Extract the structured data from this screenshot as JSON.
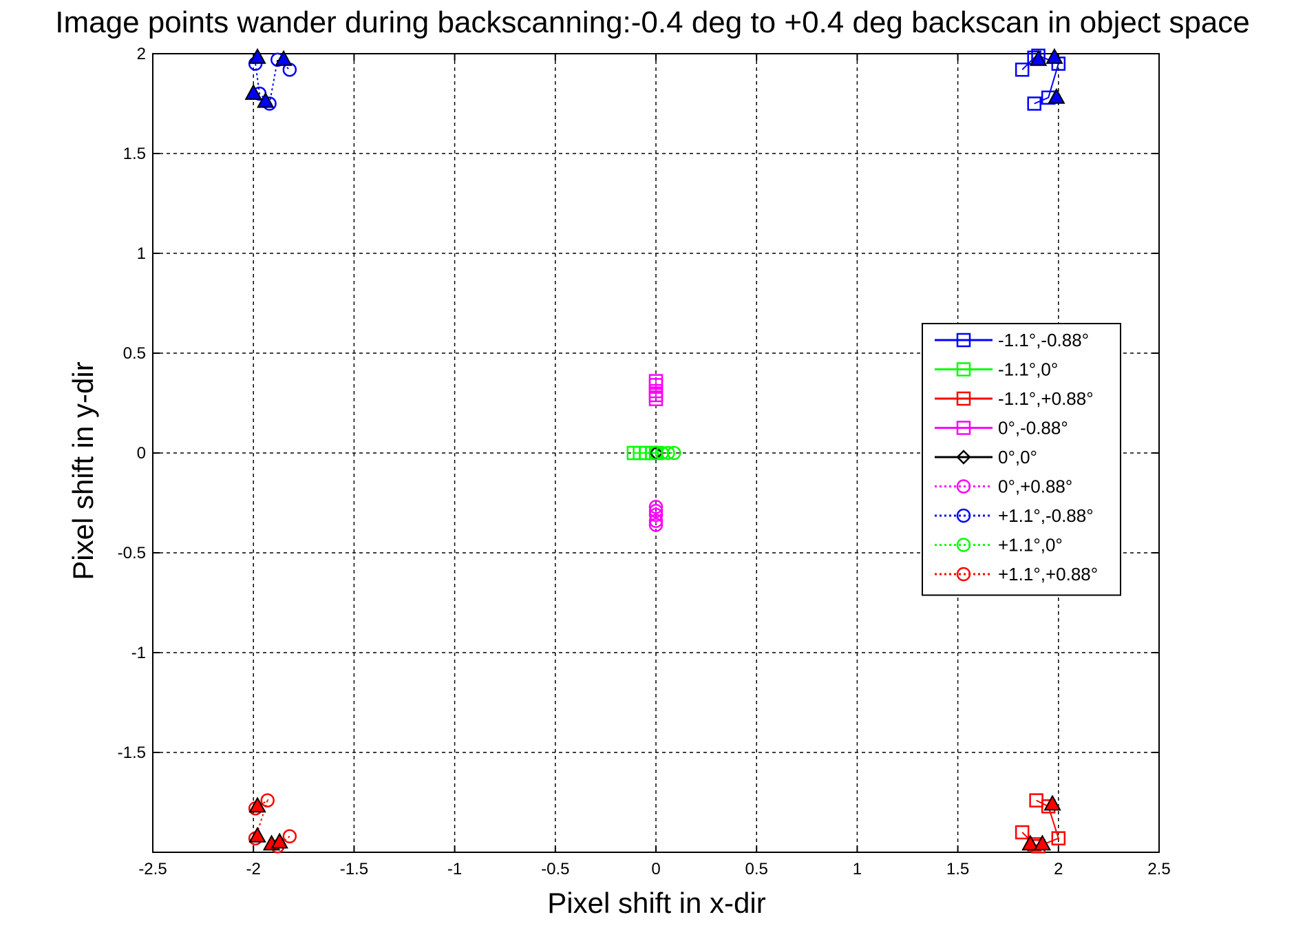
{
  "chart_data": {
    "type": "scatter",
    "title": "Image points wander during backscanning:-0.4 deg to +0.4 deg backscan in object space",
    "xlabel": "Pixel shift in x-dir",
    "ylabel": "Pixel shift in y-dir",
    "xlim": [
      -2.5,
      2.5
    ],
    "ylim": [
      -2.0,
      2.0
    ],
    "xticks": [
      -2.5,
      -2,
      -1.5,
      -1,
      -0.5,
      0,
      0.5,
      1,
      1.5,
      2,
      2.5
    ],
    "xtick_labels": [
      "-2.5",
      "-2",
      "-1.5",
      "-1",
      "-0.5",
      "0",
      "0.5",
      "1",
      "1.5",
      "2",
      "2.5"
    ],
    "yticks": [
      -1.5,
      -1,
      -0.5,
      0,
      0.5,
      1,
      1.5,
      2
    ],
    "ytick_labels": [
      "-1.5",
      "-1",
      "-0.5",
      "0",
      "0.5",
      "1",
      "1.5",
      "2"
    ],
    "grid": true,
    "legend_position": "right",
    "series": [
      {
        "name": "-1.1°,-0.88°",
        "color": "#0000ff",
        "line": "solid",
        "marker": "square",
        "points": [
          [
            1.82,
            1.92
          ],
          [
            1.88,
            1.98
          ],
          [
            1.9,
            1.99
          ],
          [
            2.0,
            1.95
          ],
          [
            1.95,
            1.78
          ],
          [
            1.88,
            1.75
          ]
        ]
      },
      {
        "name": "-1.1°,0°",
        "color": "#00ff00",
        "line": "solid",
        "marker": "square",
        "points": [
          [
            -0.11,
            0.0
          ],
          [
            -0.08,
            0.0
          ],
          [
            -0.05,
            0.0
          ],
          [
            -0.02,
            0.0
          ],
          [
            0.0,
            0.0
          ]
        ]
      },
      {
        "name": "-1.1°,+0.88°",
        "color": "#ff0000",
        "line": "solid",
        "marker": "square",
        "points": [
          [
            1.82,
            -1.9
          ],
          [
            1.88,
            -1.96
          ],
          [
            1.9,
            -1.97
          ],
          [
            2.0,
            -1.93
          ],
          [
            1.95,
            -1.77
          ],
          [
            1.89,
            -1.74
          ]
        ]
      },
      {
        "name": "0°,-0.88°",
        "color": "#ff00ff",
        "line": "solid",
        "marker": "square",
        "points": [
          [
            0.0,
            0.36
          ],
          [
            0.0,
            0.34
          ],
          [
            0.0,
            0.31
          ],
          [
            0.0,
            0.29
          ],
          [
            0.0,
            0.27
          ]
        ]
      },
      {
        "name": "0°,0°",
        "color": "#000000",
        "line": "solid",
        "marker": "diamond",
        "points": [
          [
            0.0,
            0.0
          ]
        ]
      },
      {
        "name": "0°,+0.88°",
        "color": "#ff00ff",
        "line": "dotted",
        "marker": "circle",
        "points": [
          [
            0.0,
            -0.27
          ],
          [
            0.0,
            -0.29
          ],
          [
            0.0,
            -0.31
          ],
          [
            0.0,
            -0.34
          ],
          [
            0.0,
            -0.36
          ]
        ]
      },
      {
        "name": "+1.1°,-0.88°",
        "color": "#0000ff",
        "line": "dotted",
        "marker": "circle",
        "points": [
          [
            -1.99,
            1.95
          ],
          [
            -1.97,
            1.8
          ],
          [
            -1.92,
            1.75
          ],
          [
            -1.88,
            1.97
          ],
          [
            -1.82,
            1.92
          ]
        ]
      },
      {
        "name": "+1.1°,0°",
        "color": "#00ff00",
        "line": "dotted",
        "marker": "circle",
        "points": [
          [
            0.0,
            0.0
          ],
          [
            0.03,
            0.0
          ],
          [
            0.06,
            0.0
          ],
          [
            0.09,
            0.0
          ]
        ]
      },
      {
        "name": "+1.1°,+0.88°",
        "color": "#ff0000",
        "line": "dotted",
        "marker": "circle",
        "points": [
          [
            -1.99,
            -1.78
          ],
          [
            -1.93,
            -1.74
          ],
          [
            -1.99,
            -1.93
          ],
          [
            -1.88,
            -1.97
          ],
          [
            -1.82,
            -1.92
          ]
        ]
      }
    ],
    "triangle_markers": [
      {
        "color": "#0000ff",
        "points": [
          [
            -1.98,
            1.98
          ],
          [
            -2.0,
            1.8
          ],
          [
            -1.94,
            1.76
          ],
          [
            -1.85,
            1.97
          ],
          [
            1.9,
            1.97
          ],
          [
            1.98,
            1.98
          ],
          [
            1.99,
            1.78
          ]
        ]
      },
      {
        "color": "#ff0000",
        "points": [
          [
            -1.98,
            -1.77
          ],
          [
            -1.98,
            -1.92
          ],
          [
            -1.91,
            -1.96
          ],
          [
            -1.87,
            -1.95
          ],
          [
            1.86,
            -1.96
          ],
          [
            1.92,
            -1.96
          ],
          [
            1.97,
            -1.76
          ]
        ]
      }
    ]
  }
}
